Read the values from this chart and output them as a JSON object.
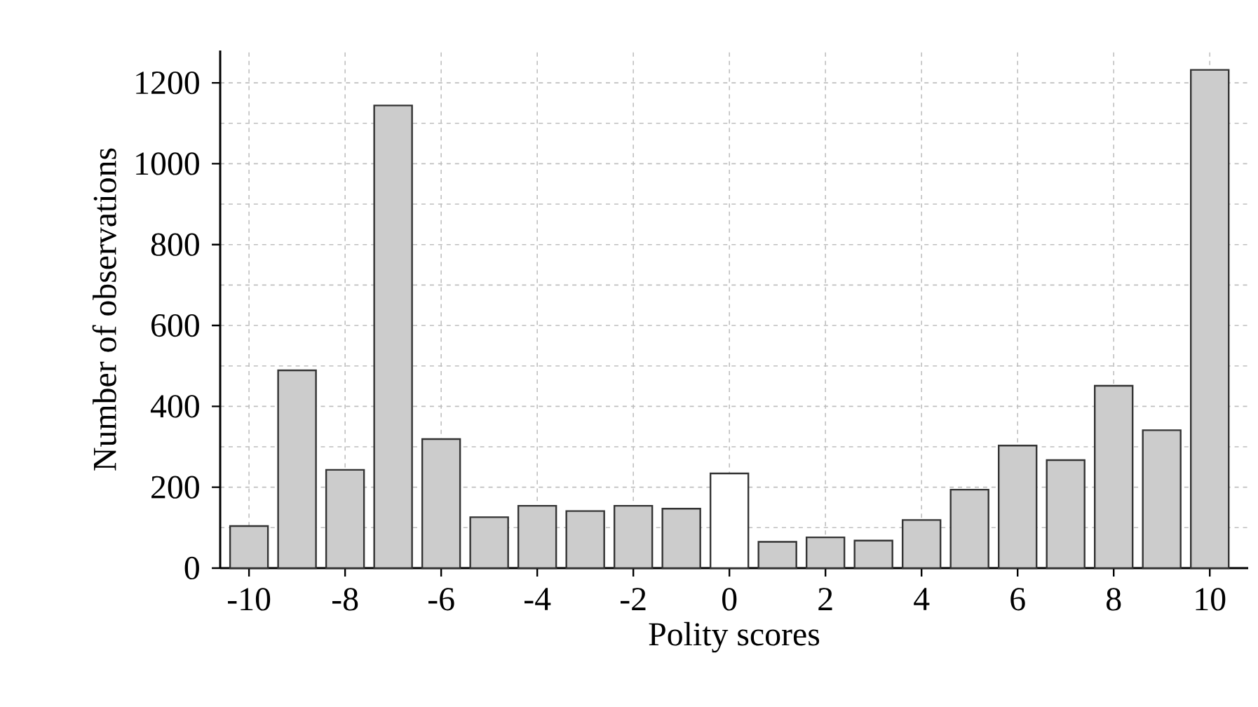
{
  "chart_data": {
    "type": "bar",
    "xlabel": "Polity scores",
    "ylabel": "Number of observations",
    "x": [
      -10,
      -9,
      -8,
      -7,
      -6,
      -5,
      -4,
      -3,
      -2,
      -1,
      0,
      1,
      2,
      3,
      4,
      5,
      6,
      7,
      8,
      9,
      10
    ],
    "values": [
      104,
      489,
      243,
      1144,
      319,
      126,
      154,
      141,
      154,
      147,
      234,
      65,
      76,
      68,
      119,
      194,
      303,
      267,
      451,
      341,
      1232
    ],
    "colors": [
      "#cccccc",
      "#cccccc",
      "#cccccc",
      "#cccccc",
      "#cccccc",
      "#cccccc",
      "#cccccc",
      "#cccccc",
      "#cccccc",
      "#cccccc",
      "#ffffff",
      "#cccccc",
      "#cccccc",
      "#cccccc",
      "#cccccc",
      "#cccccc",
      "#cccccc",
      "#cccccc",
      "#cccccc",
      "#cccccc",
      "#cccccc"
    ],
    "xlim": [
      -10.6,
      10.8
    ],
    "ylim": [
      0,
      1280
    ],
    "xticks": [
      -10,
      -8,
      -6,
      -4,
      -2,
      0,
      2,
      4,
      6,
      8,
      10
    ],
    "yticks": [
      0,
      200,
      400,
      600,
      800,
      1000,
      1200
    ],
    "grid": true
  }
}
